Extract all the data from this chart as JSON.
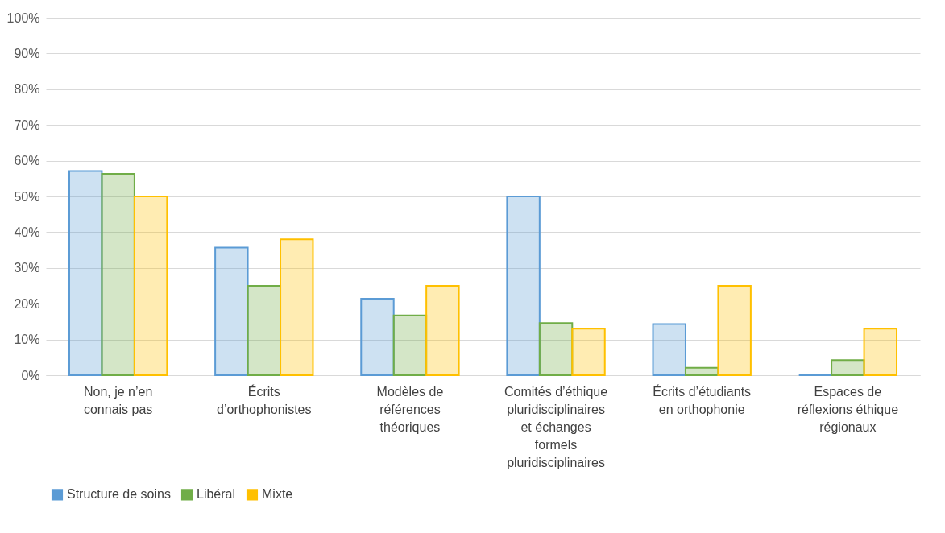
{
  "chart_data": {
    "type": "bar",
    "categories": [
      "Non, je n’en connais pas",
      "Écrits d’orthophonistes",
      "Modèles de références théoriques",
      "Comités d’éthique pluridisciplinaires et échanges formels pluridisciplinaires",
      "Écrits d’étudiants en orthophonie",
      "Espaces de réflexions éthique régionaux"
    ],
    "series": [
      {
        "name": "Structure de soins",
        "color": "#5b9bd5",
        "values": [
          57.1,
          35.7,
          21.4,
          50,
          14.3,
          0
        ]
      },
      {
        "name": "Libéral",
        "color": "#70ad47",
        "values": [
          56.3,
          25,
          16.7,
          14.6,
          2.1,
          4.2
        ]
      },
      {
        "name": "Mixte",
        "color": "#ffc000",
        "values": [
          50,
          38,
          25,
          13,
          25,
          13
        ]
      }
    ],
    "ylim": [
      0,
      100
    ],
    "yticks": [
      {
        "value": 0,
        "label": "0%"
      },
      {
        "value": 10,
        "label": "10%"
      },
      {
        "value": 20,
        "label": "20%"
      },
      {
        "value": 30,
        "label": "30%"
      },
      {
        "value": 40,
        "label": "40%"
      },
      {
        "value": 50,
        "label": "50%"
      },
      {
        "value": 60,
        "label": "60%"
      },
      {
        "value": 70,
        "label": "70%"
      },
      {
        "value": 80,
        "label": "80%"
      },
      {
        "value": 90,
        "label": "90%"
      },
      {
        "value": 100,
        "label": "100%"
      }
    ],
    "grid": "y",
    "legend": "bottom"
  }
}
